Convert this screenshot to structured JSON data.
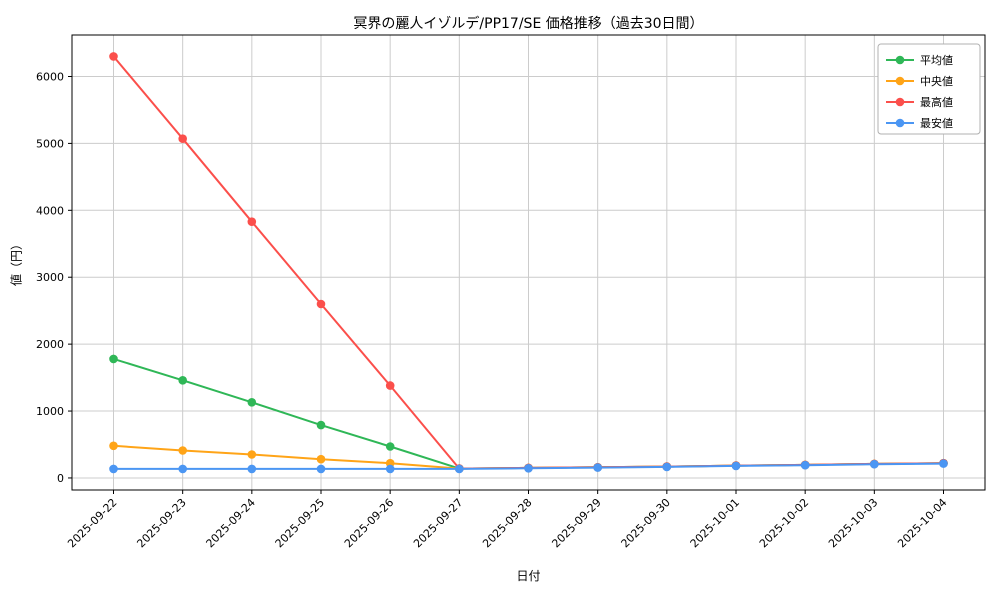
{
  "chart_data": {
    "type": "line",
    "title": "冥界の麗人イゾルデ/PP17/SE 価格推移（過去30日間）",
    "xlabel": "日付",
    "ylabel": "値（円）",
    "categories": [
      "2025-09-22",
      "2025-09-23",
      "2025-09-24",
      "2025-09-25",
      "2025-09-26",
      "2025-09-27",
      "2025-09-28",
      "2025-09-29",
      "2025-09-30",
      "2025-10-01",
      "2025-10-02",
      "2025-10-03",
      "2025-10-04"
    ],
    "series": [
      {
        "id": "average",
        "name": "平均値",
        "color": "#2fb757",
        "values": [
          1780,
          1460,
          1130,
          790,
          470,
          140,
          150,
          160,
          170,
          185,
          195,
          210,
          220
        ]
      },
      {
        "id": "median",
        "name": "中央値",
        "color": "#ffa417",
        "values": [
          480,
          410,
          350,
          280,
          220,
          140,
          150,
          160,
          170,
          185,
          195,
          210,
          220
        ]
      },
      {
        "id": "highest",
        "name": "最高値",
        "color": "#fb4f4b",
        "values": [
          6300,
          5070,
          3830,
          2600,
          1380,
          140,
          150,
          160,
          170,
          185,
          195,
          210,
          220
        ]
      },
      {
        "id": "lowest",
        "name": "最安値",
        "color": "#4b96f3",
        "values": [
          135,
          135,
          135,
          135,
          135,
          135,
          145,
          155,
          165,
          180,
          190,
          205,
          215
        ]
      }
    ],
    "yticks": [
      0,
      1000,
      2000,
      3000,
      4000,
      5000,
      6000
    ],
    "ylim": [
      -180,
      6620
    ],
    "grid": true,
    "grid_color": "#cccccc",
    "spine_color": "#000000",
    "legend_position": "upper right",
    "legend_border_color": "#b0b0b0"
  }
}
